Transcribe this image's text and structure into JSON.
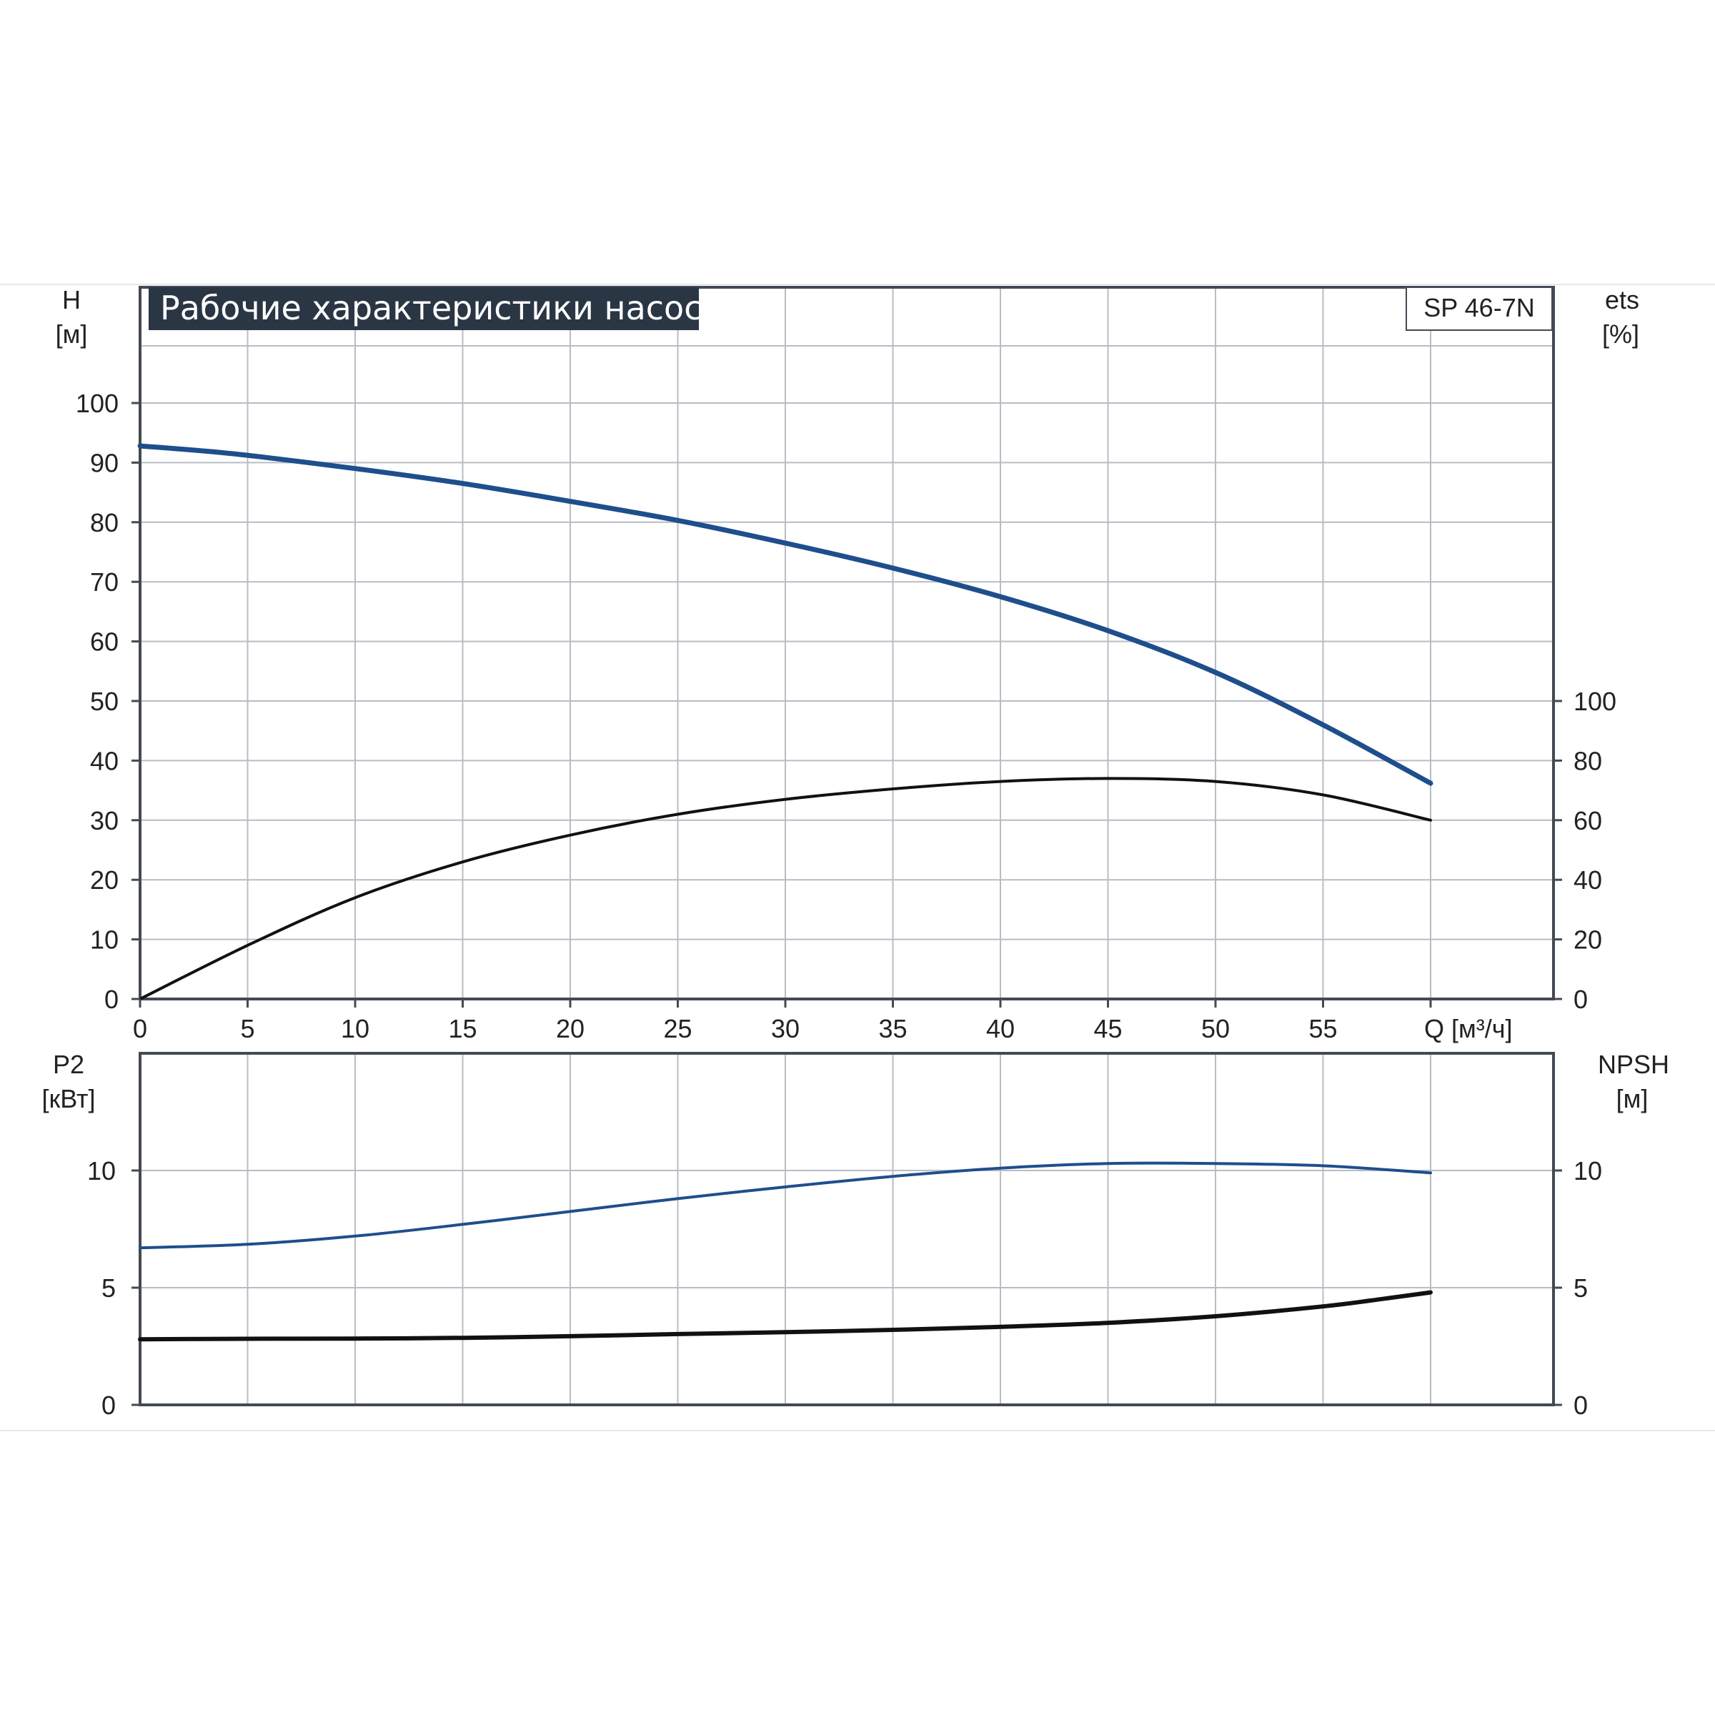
{
  "title": "Рабочие характеристики насоса",
  "model": "SP 46-7N",
  "colors": {
    "blue_curve": "#1f4e8c",
    "black_curve": "#111111",
    "title_bg": "#2b3645",
    "grid": "#b8bcc4"
  },
  "axes": {
    "top_left": {
      "name": "H",
      "unit": "[м]",
      "ticks": [
        "0",
        "10",
        "20",
        "30",
        "40",
        "50",
        "60",
        "70",
        "80",
        "90",
        "100"
      ],
      "range": [
        0,
        110
      ]
    },
    "top_right": {
      "name": "ets",
      "unit": "[%]",
      "ticks": [
        "0",
        "20",
        "40",
        "60",
        "80",
        "100"
      ],
      "range": [
        0,
        220
      ]
    },
    "x": {
      "label": "Q [м³/ч]",
      "ticks": [
        "0",
        "5",
        "10",
        "15",
        "20",
        "25",
        "30",
        "35",
        "40",
        "45",
        "50",
        "55"
      ],
      "range": [
        0,
        63
      ]
    },
    "bottom_left": {
      "name": "P2",
      "unit": "[кВт]",
      "ticks": [
        "0",
        "5",
        "10"
      ],
      "range": [
        0,
        15
      ]
    },
    "bottom_right": {
      "name": "NPSH",
      "unit": "[м]",
      "ticks": [
        "0",
        "5",
        "10"
      ],
      "range": [
        0,
        15
      ]
    }
  },
  "chart_data": [
    {
      "type": "line",
      "panel": "top",
      "title": "Рабочие характеристики насоса",
      "xlabel": "Q [м³/ч]",
      "ylabel": "H [м]",
      "xlim": [
        0,
        63
      ],
      "ylim": [
        0,
        110
      ],
      "y2label": "ets [%]",
      "y2lim": [
        0,
        220
      ],
      "grid": true,
      "series": [
        {
          "axis": "left",
          "color": "#1f4e8c",
          "x": [
            0,
            4.3,
            10,
            15,
            20,
            25,
            30,
            35,
            40,
            45,
            50,
            55,
            60
          ],
          "y": [
            92.8,
            91.5,
            89.0,
            86.5,
            83.5,
            80.3,
            76.5,
            72.3,
            67.5,
            61.8,
            54.8,
            46.0,
            36.2
          ]
        },
        {
          "axis": "right",
          "color": "#111111",
          "x": [
            0,
            5,
            10,
            15,
            20,
            25,
            30,
            35,
            40,
            45,
            50,
            55,
            60
          ],
          "y": [
            0,
            18,
            34,
            46,
            55,
            62,
            67,
            70.5,
            73,
            74,
            73,
            68.5,
            60
          ]
        }
      ]
    },
    {
      "type": "line",
      "panel": "bottom",
      "xlabel": "Q [м³/ч]",
      "ylabel": "P2 [кВт]",
      "xlim": [
        0,
        63
      ],
      "ylim": [
        0,
        15
      ],
      "y2label": "NPSH [м]",
      "y2lim": [
        0,
        15
      ],
      "grid": true,
      "series": [
        {
          "axis": "left",
          "color": "#1f4e8c",
          "x": [
            0,
            5,
            10,
            15,
            20,
            25,
            30,
            35,
            40,
            45,
            50,
            55,
            60
          ],
          "y": [
            6.7,
            6.85,
            7.2,
            7.7,
            8.25,
            8.8,
            9.3,
            9.75,
            10.1,
            10.3,
            10.3,
            10.2,
            9.9
          ]
        },
        {
          "axis": "right",
          "color": "#111111",
          "x": [
            0,
            5,
            10,
            15,
            20,
            25,
            30,
            35,
            40,
            45,
            50,
            55,
            58,
            60
          ],
          "y": [
            2.8,
            2.82,
            2.83,
            2.86,
            2.93,
            3.02,
            3.1,
            3.2,
            3.33,
            3.5,
            3.78,
            4.2,
            4.55,
            4.8
          ]
        }
      ]
    }
  ]
}
